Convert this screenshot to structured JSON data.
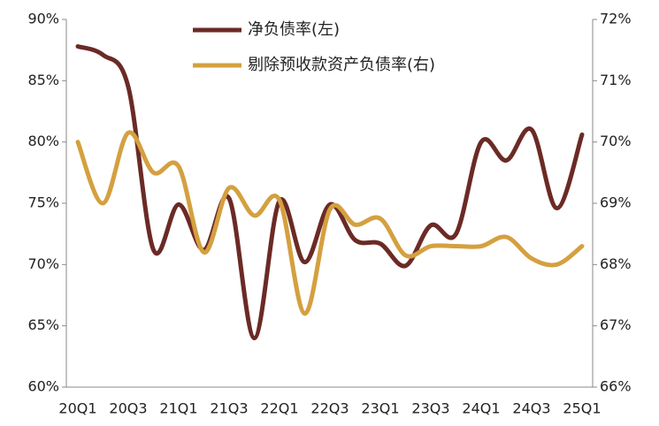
{
  "chart_data": {
    "type": "line",
    "categories": [
      "20Q1",
      null,
      "20Q3",
      null,
      "21Q1",
      null,
      "21Q3",
      null,
      "22Q1",
      null,
      "22Q3",
      null,
      "23Q1",
      null,
      "23Q3",
      null,
      "24Q1",
      null,
      "24Q3",
      null,
      "25Q1"
    ],
    "series": [
      {
        "name": "净负债率(左)",
        "color": "#6b2a25",
        "axis": "y",
        "values": [
          87.8,
          87.1,
          84.5,
          71.2,
          74.9,
          71.2,
          75.4,
          64.0,
          75.2,
          70.2,
          74.9,
          72.0,
          71.7,
          69.9,
          73.2,
          72.5,
          80.0,
          78.5,
          81.0,
          74.6,
          80.6
        ]
      },
      {
        "name": "剔除预收款资产负债率(右)",
        "color": "#d4a040",
        "axis": "y2",
        "values": [
          70.0,
          69.0,
          70.15,
          69.5,
          69.6,
          68.2,
          69.25,
          68.8,
          69.05,
          67.2,
          68.9,
          68.65,
          68.75,
          68.15,
          68.3,
          68.3,
          68.3,
          68.45,
          68.1,
          68.0,
          68.3
        ]
      }
    ],
    "ylim": [
      60,
      90
    ],
    "yticks": [
      {
        "value": 60,
        "label": "60%"
      },
      {
        "value": 65,
        "label": "65%"
      },
      {
        "value": 70,
        "label": "70%"
      },
      {
        "value": 75,
        "label": "75%"
      },
      {
        "value": 80,
        "label": "80%"
      },
      {
        "value": 85,
        "label": "85%"
      },
      {
        "value": 90,
        "label": "90%"
      }
    ],
    "y2lim": [
      66,
      72
    ],
    "y2ticks": [
      {
        "value": 66,
        "label": "66%"
      },
      {
        "value": 67,
        "label": "67%"
      },
      {
        "value": 68,
        "label": "68%"
      },
      {
        "value": 69,
        "label": "69%"
      },
      {
        "value": 70,
        "label": "70%"
      },
      {
        "value": 71,
        "label": "71%"
      },
      {
        "value": 72,
        "label": "72%"
      }
    ],
    "legend": "top"
  }
}
